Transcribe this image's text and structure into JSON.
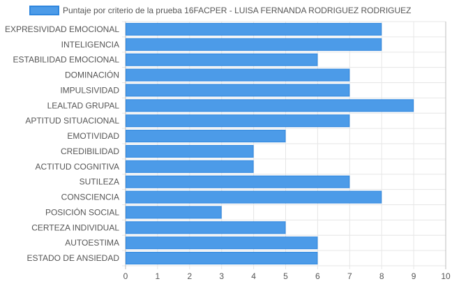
{
  "chart_data": {
    "type": "bar",
    "orientation": "horizontal",
    "categories": [
      "EXPRESIVIDAD EMOCIONAL",
      "INTELIGENCIA",
      "ESTABILIDAD EMOCIONAL",
      "DOMINACIÓN",
      "IMPULSIVIDAD",
      "LEALTAD GRUPAL",
      "APTITUD SITUACIONAL",
      "EMOTIVIDAD",
      "CREDIBILIDAD",
      "ACTITUD COGNITIVA",
      "SUTILEZA",
      "CONSCIENCIA",
      "POSICIÓN SOCIAL",
      "CERTEZA INDIVIDUAL",
      "AUTOESTIMA",
      "ESTADO DE ANSIEDAD"
    ],
    "series": [
      {
        "name": "Puntaje por criterio de la prueba 16FACPER - LUISA FERNANDA RODRIGUEZ RODRIGUEZ",
        "values": [
          8,
          8,
          6,
          7,
          7,
          9,
          7,
          5,
          4,
          4,
          7,
          8,
          3,
          5,
          6,
          6
        ]
      }
    ],
    "xlim": [
      0,
      10
    ],
    "xticks": [
      "0",
      "1",
      "2",
      "3",
      "4",
      "5",
      "6",
      "7",
      "8",
      "9",
      "10"
    ],
    "grid": true,
    "legend_position": "top",
    "colors": {
      "bar_fill": "#4c9be8",
      "bar_stroke": "#2e86de",
      "grid": "#e6e6e6",
      "axis": "#bdbdbd",
      "text": "#555555"
    }
  }
}
